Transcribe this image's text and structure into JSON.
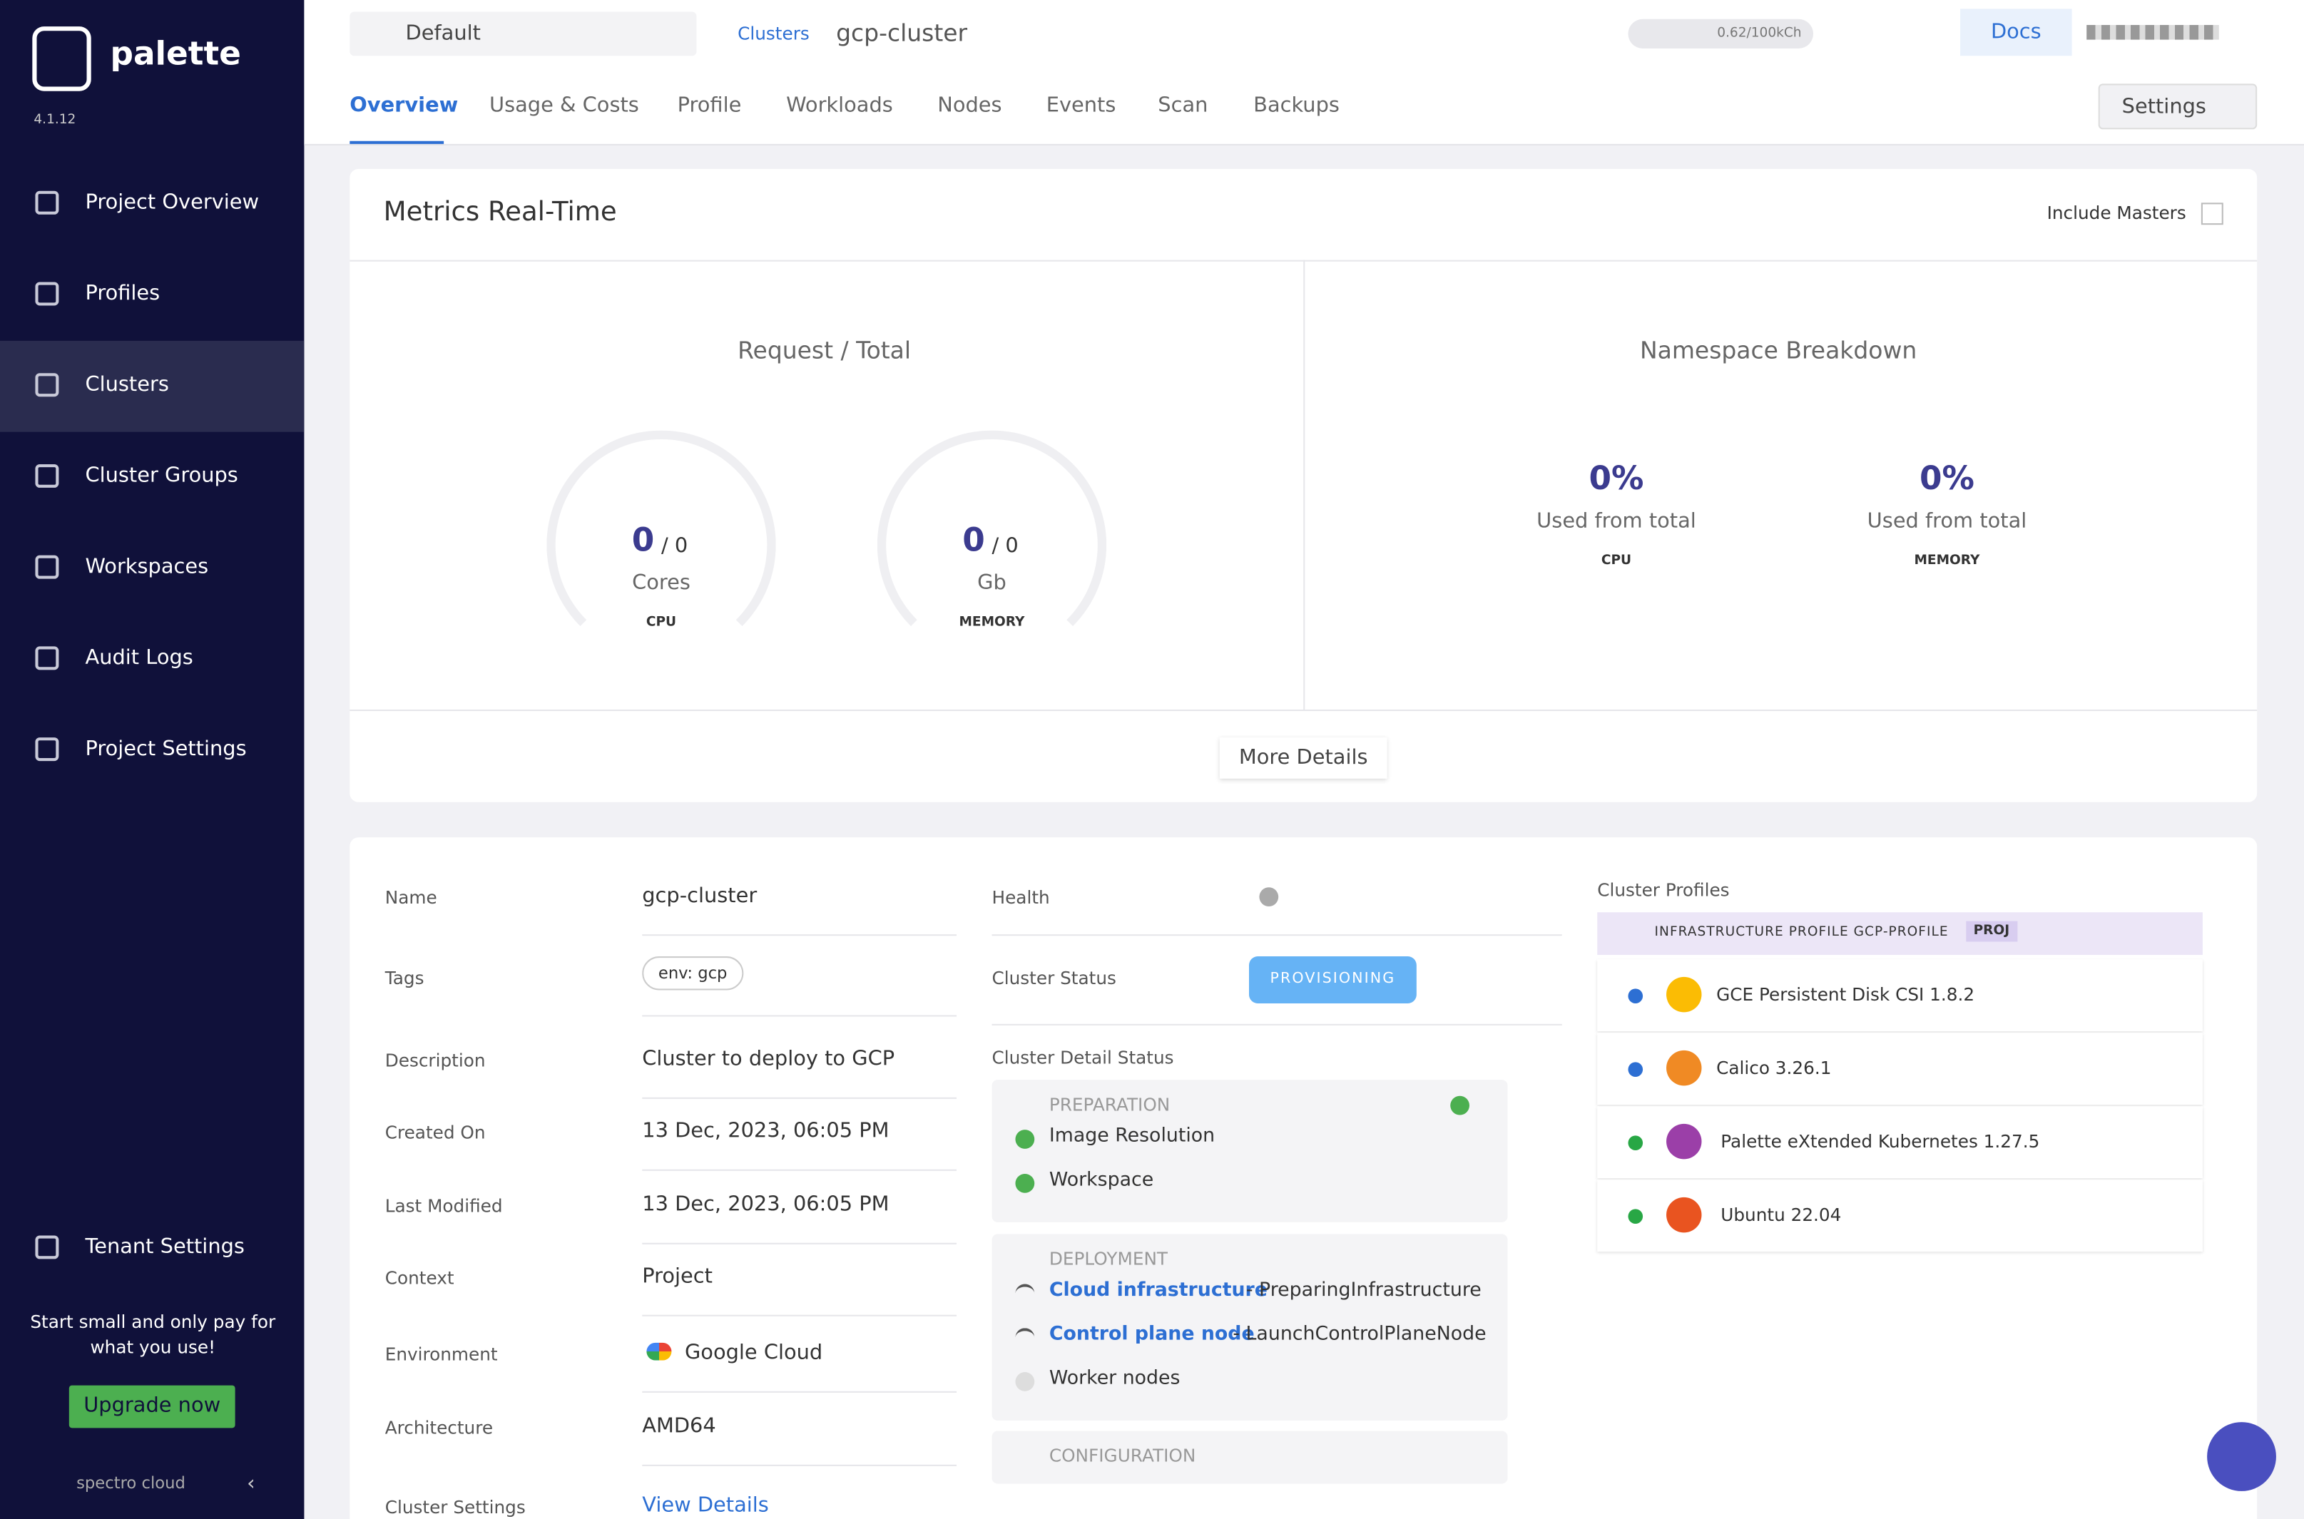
{
  "sidebar": {
    "brand": "palette",
    "version": "4.1.12",
    "nav": [
      "Project Overview",
      "Profiles",
      "Clusters",
      "Cluster Groups",
      "Workspaces",
      "Audit Logs",
      "Project Settings"
    ],
    "tenant": "Tenant Settings",
    "promo": "Start small and only pay for what you use!",
    "upgrade": "Upgrade now",
    "footer": "spectro cloud"
  },
  "topbar": {
    "project": "Default",
    "breadcrumb": [
      "Clusters",
      "gcp-cluster"
    ],
    "usage": "0.62/100kCh",
    "docs": "Docs",
    "tabs": [
      "Overview",
      "Usage & Costs",
      "Profile",
      "Workloads",
      "Nodes",
      "Events",
      "Scan",
      "Backups"
    ],
    "settings": "Settings"
  },
  "metrics": {
    "title": "Metrics Real-Time",
    "include": "Include Masters",
    "request_title": "Request / Total",
    "gauges": [
      {
        "value": 0,
        "total": "/ 0",
        "unit": "Cores",
        "label": "CPU"
      },
      {
        "value": 0,
        "total": "/ 0",
        "unit": "Gb",
        "label": "MEMORY"
      }
    ],
    "namespace_title": "Namespace Breakdown",
    "namespace": [
      {
        "value": "0%",
        "text": "Used from total",
        "label": "CPU"
      },
      {
        "value": "0%",
        "text": "Used from total",
        "label": "MEMORY"
      }
    ],
    "more": "More Details"
  },
  "details": {
    "rows": [
      [
        "Name",
        "gcp-cluster"
      ],
      [
        "Tags",
        "env: gcp"
      ],
      [
        "Description",
        "Cluster to deploy to GCP"
      ],
      [
        "Created On",
        "13 Dec, 2023, 06:05 PM"
      ],
      [
        "Last Modified",
        "13 Dec, 2023, 06:05 PM"
      ],
      [
        "Context",
        "Project"
      ],
      [
        "Environment",
        "Google Cloud"
      ],
      [
        "Architecture",
        "AMD64"
      ],
      [
        "Cluster Settings",
        "View Details"
      ]
    ],
    "health": "Health",
    "status_label": "Cluster Status",
    "status": "PROVISIONING",
    "detail_status": "Cluster Detail Status",
    "sections": [
      {
        "title": "PREPARATION",
        "items": [
          {
            "name": "Image Resolution"
          },
          {
            "name": "Workspace"
          }
        ]
      },
      {
        "title": "DEPLOYMENT",
        "items": [
          {
            "name": "Cloud infrastructure",
            "state": "- PreparingInfrastructure"
          },
          {
            "name": "Control plane node",
            "state": "- LaunchControlPlaneNode"
          },
          {
            "name": "Worker nodes"
          }
        ]
      },
      {
        "title": "CONFIGURATION",
        "items": []
      }
    ]
  },
  "profiles": {
    "title": "Cluster Profiles",
    "header": "INFRASTRUCTURE PROFILE GCP-PROFILE",
    "badge": "PROJ",
    "items": [
      "GCE Persistent Disk CSI 1.8.2",
      "Calico 3.26.1",
      "Palette eXtended Kubernetes 1.27.5",
      "Ubuntu 22.04"
    ]
  }
}
